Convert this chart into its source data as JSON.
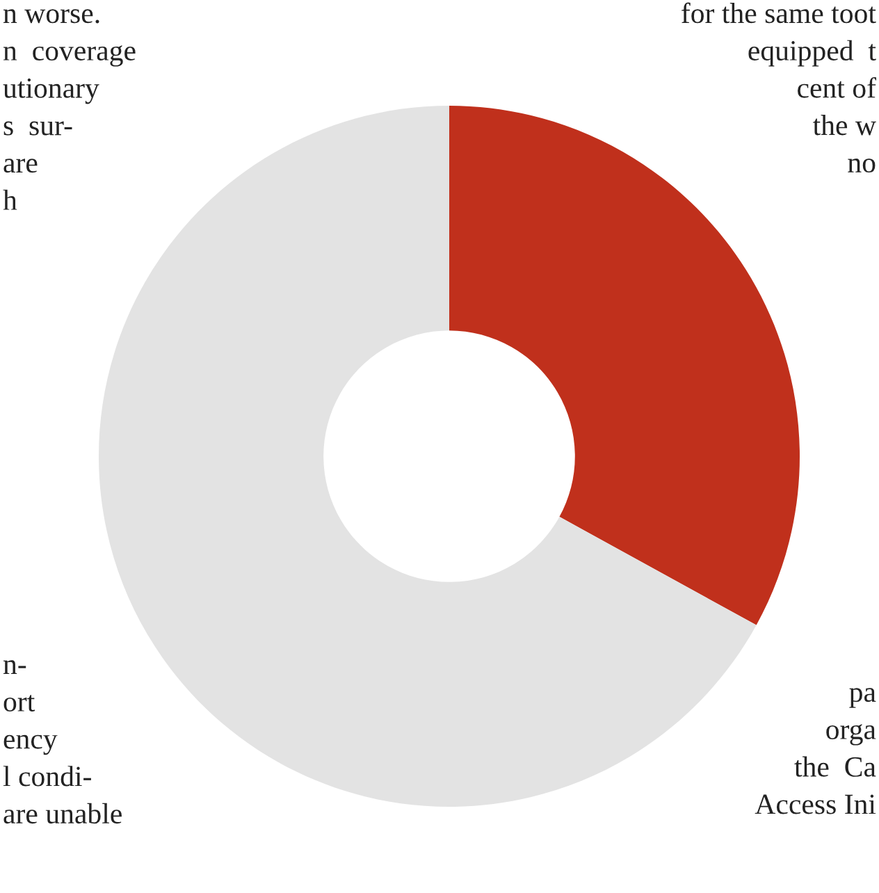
{
  "chart_data": {
    "type": "donut",
    "categories": [
      null,
      null
    ],
    "values": [
      33,
      67
    ],
    "colors": [
      "#c0301c",
      "#e3e3e3"
    ],
    "annotations": [
      "n worse.\nn  coverage\nutionary\ns  sur-\nare\nh",
      "for the same toot\nequipped  t\ncent of\nthe w\nno",
      "n-\nort\nency\nl condi-\nare unable",
      "pa\norga\nthe  Ca\nAccess Ini"
    ]
  }
}
